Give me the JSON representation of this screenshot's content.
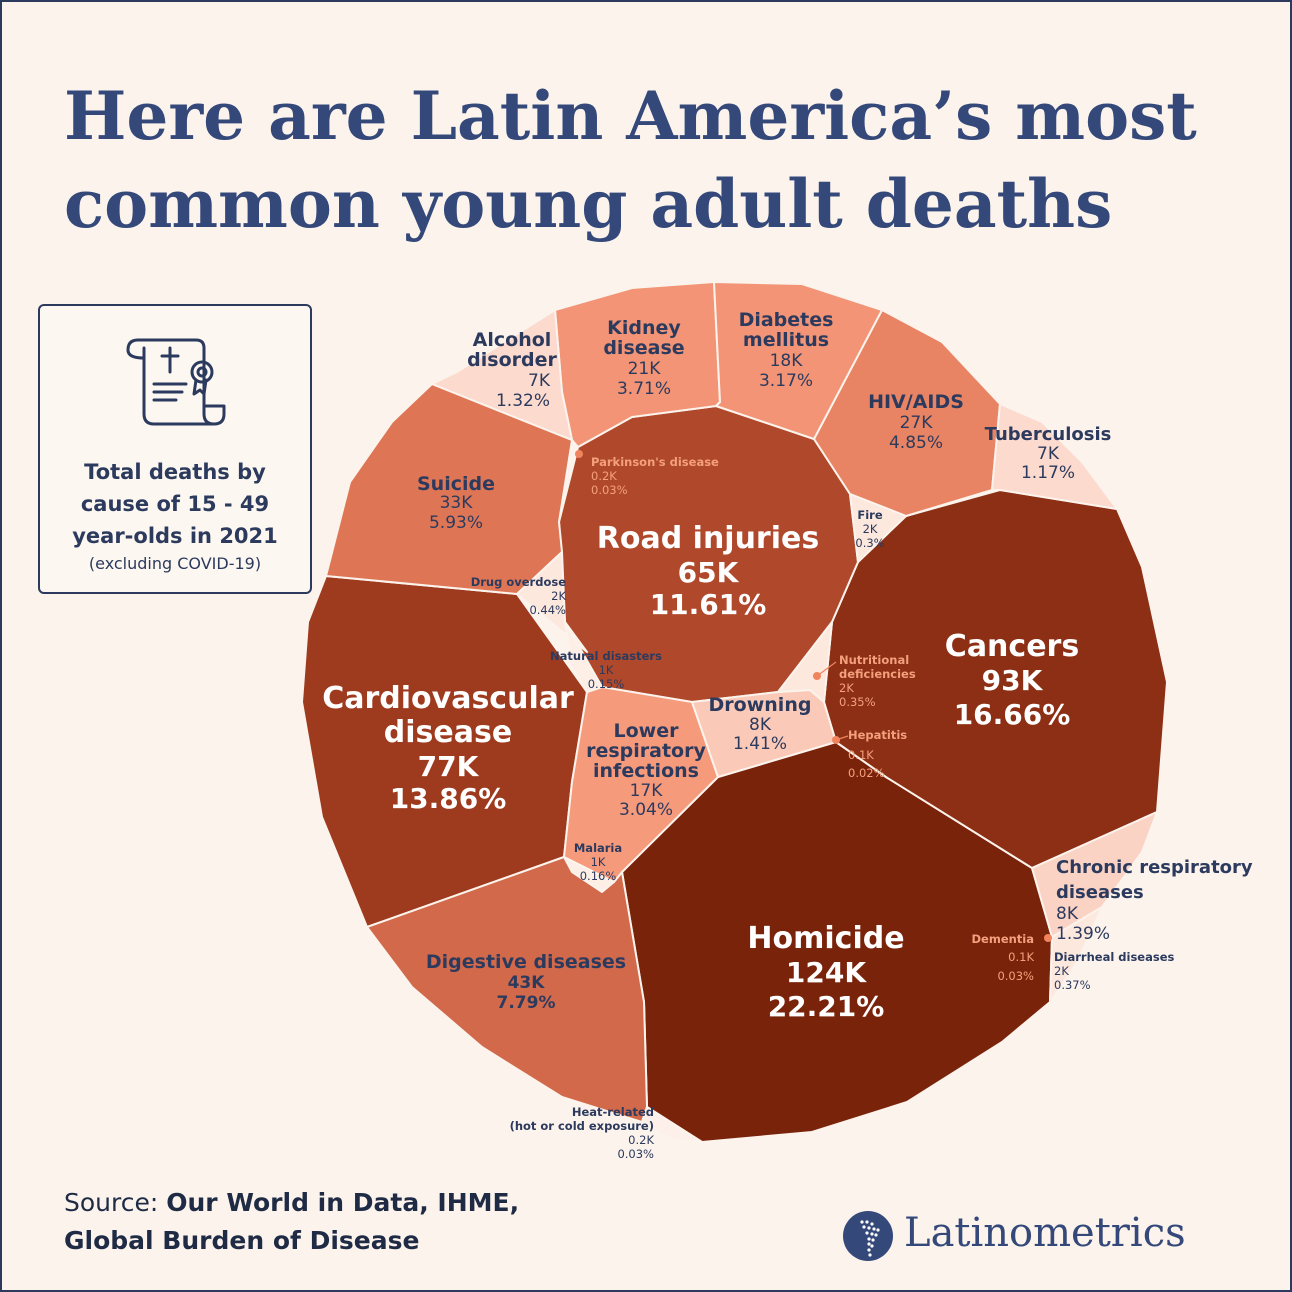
{
  "title_line1": "Here are Latin America’s most",
  "title_line2": "common young adult deaths",
  "infobox": {
    "icon": "certificate-scroll-icon",
    "title": "Total deaths by cause of 15 - 49 year-olds in 2021",
    "subtitle": "(excluding COVID-19)"
  },
  "source": {
    "prefix": "Source: ",
    "line1": "Our World in Data, IHME,",
    "line2": "Global Burden of Disease"
  },
  "brand": {
    "name": "Latinometrics",
    "icon": "latin-america-map-logo-icon"
  },
  "colors": {
    "background": "#fbf3ec",
    "title": "#34487a",
    "text_dark": "#2c3a5e",
    "cell_border": "#fbf3ec"
  },
  "chart_data": {
    "type": "voronoi-treemap",
    "units": "deaths",
    "series": [
      {
        "name": "Homicide",
        "value": "124K",
        "share": "22.21%",
        "color": "#7a230b"
      },
      {
        "name": "Cancers",
        "value": "93K",
        "share": "16.66%",
        "color": "#8c2f14"
      },
      {
        "name": "Cardiovascular disease",
        "value": "77K",
        "share": "13.86%",
        "color": "#9e3a1e"
      },
      {
        "name": "Road injuries",
        "value": "65K",
        "share": "11.61%",
        "color": "#b0492b"
      },
      {
        "name": "Digestive diseases",
        "value": "43K",
        "share": "7.79%",
        "color": "#d2694a"
      },
      {
        "name": "Suicide",
        "value": "33K",
        "share": "5.93%",
        "color": "#de7656"
      },
      {
        "name": "HIV/AIDS",
        "value": "27K",
        "share": "4.85%",
        "color": "#e88463"
      },
      {
        "name": "Kidney disease",
        "value": "21K",
        "share": "3.71%",
        "color": "#f29475"
      },
      {
        "name": "Diabetes mellitus",
        "value": "18K",
        "share": "3.17%",
        "color": "#f29475"
      },
      {
        "name": "Lower respiratory infections",
        "value": "17K",
        "share": "3.04%",
        "color": "#f69a7c"
      },
      {
        "name": "Drowning",
        "value": "8K",
        "share": "1.41%",
        "color": "#fbc9b7"
      },
      {
        "name": "Chronic respiratory diseases",
        "value": "8K",
        "share": "1.39%",
        "color": "#fbd3c4"
      },
      {
        "name": "Alcohol disorder",
        "value": "7K",
        "share": "1.32%",
        "color": "#fcdacd"
      },
      {
        "name": "Tuberculosis",
        "value": "7K",
        "share": "1.17%",
        "color": "#fcdacd"
      },
      {
        "name": "Drug overdose",
        "value": "2K",
        "share": "0.44%",
        "color": "#fde8de"
      },
      {
        "name": "Diarrheal diseases",
        "value": "2K",
        "share": "0.37%",
        "color": "#fde8de"
      },
      {
        "name": "Nutritional deficiencies",
        "value": "2K",
        "share": "0.35%",
        "color": "#fde8de"
      },
      {
        "name": "Fire",
        "value": "2K",
        "share": "0.3%",
        "color": "#fde8de"
      },
      {
        "name": "Malaria",
        "value": "1K",
        "share": "0.16%",
        "color": "#fdeee6"
      },
      {
        "name": "Natural disasters",
        "value": "1K",
        "share": "0.15%",
        "color": "#fdeee6"
      },
      {
        "name": "Parkinson's disease",
        "value": "0.2K",
        "share": "0.03%",
        "color": "#fdf0ea"
      },
      {
        "name": "Heat-related (hot or cold exposure)",
        "value": "0.2K",
        "share": "0.03%",
        "color": "#fdf0ea"
      },
      {
        "name": "Dementia",
        "value": "0.1K",
        "share": "0.03%",
        "color": "#fdf0ea"
      },
      {
        "name": "Hepatitis",
        "value": "0.1K",
        "share": "0.02%",
        "color": "#fdf0ea"
      }
    ]
  }
}
